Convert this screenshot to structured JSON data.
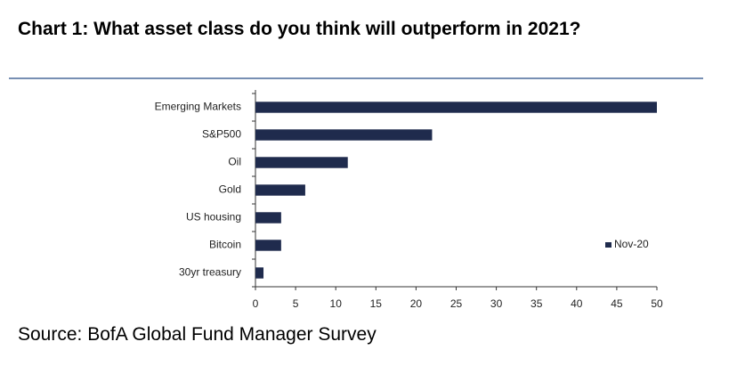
{
  "chart_data": {
    "type": "bar",
    "orientation": "horizontal",
    "title": "Chart 1: What asset class do you think will outperform in 2021?",
    "source": "Source: BofA Global Fund Manager Survey",
    "categories": [
      "Emerging Markets",
      "S&P500",
      "Oil",
      "Gold",
      "US housing",
      "Bitcoin",
      "30yr treasury"
    ],
    "series": [
      {
        "name": "Nov-20",
        "color": "#1f2b4d",
        "values": [
          50,
          22,
          11.5,
          6.2,
          3.2,
          3.2,
          1
        ]
      }
    ],
    "xlim": [
      0,
      50
    ],
    "xticks": [
      0,
      5,
      10,
      15,
      20,
      25,
      30,
      35,
      40,
      45,
      50
    ],
    "grid": false,
    "legend": "right"
  }
}
